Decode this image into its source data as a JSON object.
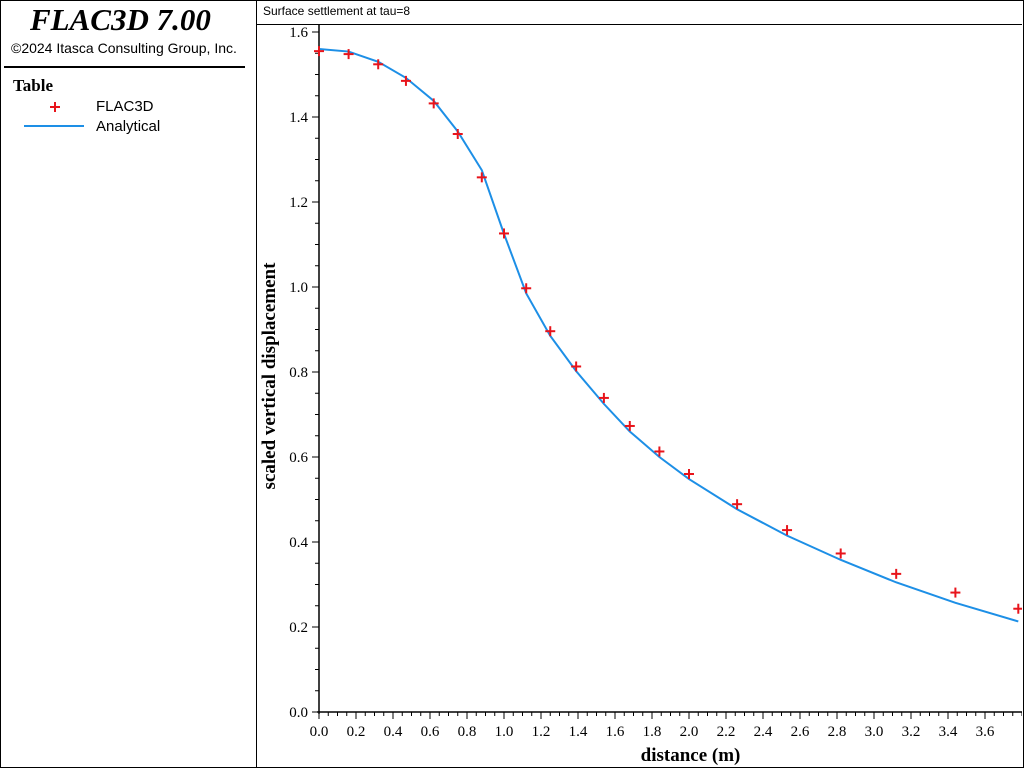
{
  "app": {
    "title": "FLAC3D 7.00",
    "copyright": "©2024 Itasca Consulting Group, Inc."
  },
  "legend": {
    "heading": "Table",
    "items": [
      {
        "label": "FLAC3D",
        "marker": "plus",
        "color": "#e8141b"
      },
      {
        "label": "Analytical",
        "marker": "line",
        "color": "#1d8fe6"
      }
    ]
  },
  "chart_data": {
    "type": "line",
    "title": "Surface settlement at tau=8",
    "xlabel": "distance (m)",
    "ylabel": "scaled vertical displacement",
    "xlim": [
      0.0,
      3.8
    ],
    "ylim": [
      0.0,
      1.6
    ],
    "grid": false,
    "x_ticks": [
      "0.0",
      "0.2",
      "0.4",
      "0.6",
      "0.8",
      "1.0",
      "1.2",
      "1.4",
      "1.6",
      "1.8",
      "2.0",
      "2.2",
      "2.4",
      "2.6",
      "2.8",
      "3.0",
      "3.2",
      "3.4",
      "3.6"
    ],
    "y_ticks": [
      "0.0",
      "0.2",
      "0.4",
      "0.6",
      "0.8",
      "1.0",
      "1.2",
      "1.4",
      "1.6"
    ],
    "series": [
      {
        "name": "FLAC3D",
        "style": "scatter-plus",
        "color": "#e8141b",
        "x": [
          0.0,
          0.16,
          0.32,
          0.47,
          0.62,
          0.75,
          0.88,
          1.0,
          1.12,
          1.25,
          1.39,
          1.54,
          1.68,
          1.84,
          2.0,
          2.26,
          2.53,
          2.82,
          3.12,
          3.44,
          3.78
        ],
        "y": [
          1.555,
          1.548,
          1.524,
          1.485,
          1.432,
          1.36,
          1.258,
          1.126,
          0.997,
          0.896,
          0.813,
          0.739,
          0.673,
          0.613,
          0.56,
          0.489,
          0.428,
          0.373,
          0.325,
          0.281,
          0.243
        ]
      },
      {
        "name": "Analytical",
        "style": "line",
        "color": "#1d8fe6",
        "x": [
          0.0,
          0.16,
          0.32,
          0.47,
          0.62,
          0.75,
          0.88,
          1.0,
          1.12,
          1.25,
          1.39,
          1.54,
          1.68,
          1.84,
          2.0,
          2.26,
          2.53,
          2.82,
          3.12,
          3.44,
          3.78
        ],
        "y": [
          1.56,
          1.554,
          1.53,
          1.492,
          1.438,
          1.366,
          1.275,
          1.125,
          0.985,
          0.885,
          0.802,
          0.725,
          0.66,
          0.6,
          0.548,
          0.477,
          0.415,
          0.358,
          0.305,
          0.257,
          0.213
        ]
      }
    ]
  }
}
